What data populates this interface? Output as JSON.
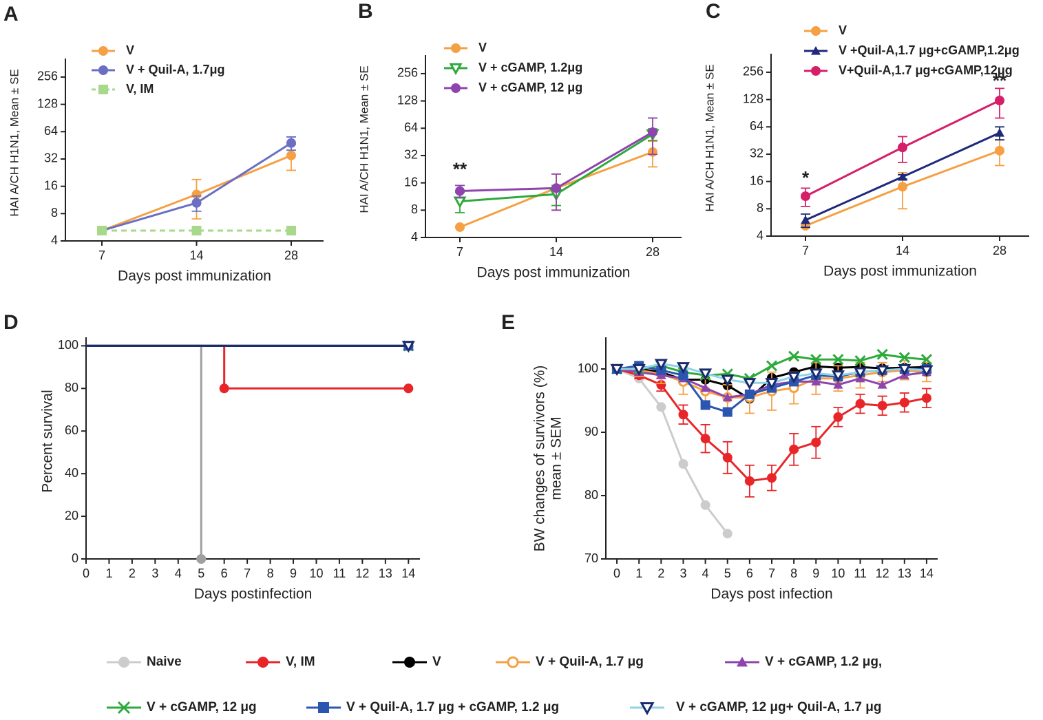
{
  "chart_data": [
    {
      "type": "line",
      "label": "A",
      "ylabel": "HAI A/CH H1N1, Mean ± SE",
      "xlabel": "Days post immunization",
      "categories": [
        "7",
        "14",
        "28"
      ],
      "log_scale": true,
      "ylim": [
        4,
        410
      ],
      "yticks": [
        4,
        8,
        16,
        32,
        64,
        128,
        256
      ],
      "legend": "upper left",
      "series": [
        {
          "name": "V",
          "color": "#f5a043",
          "marker": "circle",
          "values": [
            5.2,
            13,
            35
          ],
          "errors": [
            0,
            6,
            11
          ]
        },
        {
          "name": "V + Quil-A, 1.7μg",
          "color": "#6a6fc4",
          "marker": "circle",
          "values": [
            5.2,
            10.5,
            48
          ],
          "errors": [
            0,
            2,
            8
          ]
        },
        {
          "name": "V, IM",
          "color": "#a8d88a",
          "marker": "square",
          "dashed": true,
          "values": [
            5.2,
            5.2,
            5.2
          ]
        }
      ]
    },
    {
      "type": "line",
      "label": "B",
      "ylabel": "HAI A/CH H1N1, Mean ± SE",
      "xlabel": "Days post immunization",
      "categories": [
        "7",
        "14",
        "28"
      ],
      "log_scale": true,
      "ylim": [
        4,
        410
      ],
      "yticks": [
        4,
        8,
        16,
        32,
        64,
        128,
        256
      ],
      "legend": "upper left",
      "series": [
        {
          "name": "V",
          "color": "#f5a043",
          "marker": "circle",
          "values": [
            5.2,
            14,
            35
          ],
          "errors": [
            0,
            6,
            11
          ]
        },
        {
          "name": "V + cGAMP, 1.2μg",
          "color": "#2eaa3c",
          "marker": "open-triangle-down",
          "values": [
            10,
            12,
            55
          ],
          "errors": [
            2.5,
            3,
            8
          ]
        },
        {
          "name": "V + cGAMP, 12 μg",
          "color": "#8e44ad",
          "marker": "circle",
          "values": [
            13,
            14,
            58
          ],
          "errors": [
            2,
            6,
            25
          ]
        }
      ],
      "annotations": [
        {
          "text": "**",
          "x": "7",
          "y": 22,
          "color": "#8e44ad"
        }
      ]
    },
    {
      "type": "line",
      "label": "C",
      "ylabel": "HAI A/CH H1N1, Mean ± SE",
      "xlabel": "Days post immunization",
      "categories": [
        "7",
        "14",
        "28"
      ],
      "log_scale": true,
      "ylim": [
        4,
        410
      ],
      "yticks": [
        4,
        8,
        16,
        32,
        64,
        128,
        256
      ],
      "legend": "upper left",
      "series": [
        {
          "name": "V",
          "color": "#f5a043",
          "marker": "circle",
          "values": [
            5.2,
            14,
            35
          ],
          "errors": [
            0,
            6,
            11
          ]
        },
        {
          "name": "V +Quil-A,1.7 μg+cGAMP,1.2μg",
          "color": "#1f2a7a",
          "marker": "triangle",
          "values": [
            6,
            18,
            55
          ],
          "errors": [
            1,
            1,
            9
          ]
        },
        {
          "name": "V+Quil-A,1.7 μg+cGAMP,12μg",
          "color": "#d61f69",
          "marker": "circle",
          "values": [
            11,
            38,
            125
          ],
          "errors": [
            2.5,
            12,
            45
          ]
        }
      ],
      "annotations": [
        {
          "text": "*",
          "x": "7",
          "y": 17,
          "color": "#d61f69"
        },
        {
          "text": "**",
          "x": "28",
          "y": 200,
          "color": "#d61f69"
        }
      ]
    },
    {
      "type": "survival",
      "label": "D",
      "ylabel": "Percent survival",
      "xlabel": "Days postinfection",
      "xlim": [
        0,
        14.5
      ],
      "xticks": [
        0,
        1,
        2,
        3,
        4,
        5,
        6,
        7,
        8,
        9,
        10,
        11,
        12,
        13,
        14
      ],
      "ylim": [
        0,
        104
      ],
      "yticks": [
        0,
        20,
        40,
        60,
        80,
        100
      ],
      "series": [
        {
          "color": "#a0a0a0",
          "marker": "circle",
          "x": [
            0,
            5
          ],
          "values": [
            100,
            0
          ]
        },
        {
          "color": "#e8262a",
          "marker": "circle",
          "x": [
            0,
            6,
            14
          ],
          "values": [
            100,
            80,
            80
          ]
        },
        {
          "color": "#000000",
          "marker": "circle",
          "x": [
            0,
            14
          ],
          "values": [
            100,
            100
          ]
        },
        {
          "color": "#2eaa3c",
          "marker": "x",
          "x": [
            0,
            14
          ],
          "values": [
            100,
            100
          ]
        },
        {
          "color": "#2a55b0",
          "marker": "square",
          "x": [
            0,
            14
          ],
          "values": [
            100,
            100
          ]
        },
        {
          "color": "#1a2a6c",
          "marker": "open-triangle-down",
          "x": [
            0,
            14
          ],
          "values": [
            100,
            100
          ]
        }
      ]
    },
    {
      "type": "line",
      "label": "E",
      "ylabel": [
        "BW changes of survivors (%)",
        "mean ± SEM"
      ],
      "xlabel": "Days post infection",
      "x": [
        0,
        1,
        2,
        3,
        4,
        5,
        6,
        7,
        8,
        9,
        10,
        11,
        12,
        13,
        14
      ],
      "xlim": [
        -0.5,
        14.5
      ],
      "xticks": [
        0,
        1,
        2,
        3,
        4,
        5,
        6,
        7,
        8,
        9,
        10,
        11,
        12,
        13,
        14
      ],
      "ylim": [
        70,
        105
      ],
      "yticks": [
        70,
        80,
        90,
        100
      ],
      "legend": "bottom",
      "series": [
        {
          "name": "Naive",
          "color": "#cccccc",
          "marker": "circle",
          "values": [
            100,
            98.5,
            94,
            85,
            78.5,
            74,
            null,
            null,
            null,
            null,
            null,
            null,
            null,
            null,
            null
          ]
        },
        {
          "name": "V, IM",
          "color": "#e8262a",
          "marker": "circle",
          "values": [
            100,
            99,
            97.5,
            92.8,
            89,
            86,
            82.3,
            82.8,
            87.3,
            88.4,
            92.4,
            94.5,
            94.2,
            94.7,
            95.4
          ],
          "errors": [
            0,
            0.5,
            1,
            1.5,
            2.2,
            2.5,
            2.5,
            2,
            2.5,
            2.5,
            1.5,
            1.5,
            1.5,
            1.5,
            1.5
          ]
        },
        {
          "name": "V",
          "color": "#000000",
          "marker": "circle",
          "values": [
            100,
            100,
            99.5,
            98.3,
            98.3,
            97.4,
            95.3,
            98.6,
            99.5,
            100.4,
            100.2,
            100.3,
            100.1,
            100.2,
            100.3
          ]
        },
        {
          "name": "V + Quil-A, 1.7 μg",
          "color": "#f5a043",
          "marker": "open-circle",
          "values": [
            100,
            99.8,
            99.2,
            98,
            96.5,
            95.5,
            95.5,
            96.5,
            97,
            98.5,
            98.5,
            99,
            99.5,
            99.8,
            99.5
          ],
          "errors": [
            0,
            1,
            1.5,
            2,
            2,
            2,
            2.5,
            3,
            2.5,
            2.5,
            2,
            2,
            1.5,
            1.5,
            1.5
          ]
        },
        {
          "name": "V + cGAMP, 1.2 μg,",
          "color": "#8e44ad",
          "marker": "triangle",
          "values": [
            100,
            99.5,
            99,
            98.5,
            97,
            95.5,
            96,
            97.5,
            98,
            98,
            97.5,
            98.5,
            97.5,
            99,
            99.5
          ]
        },
        {
          "name": "V + cGAMP, 12 μg",
          "color": "#2eaa3c",
          "marker": "x",
          "values": [
            100,
            100,
            100.5,
            99.5,
            99,
            99.2,
            98.5,
            100.5,
            102,
            101.5,
            101.5,
            101.3,
            102.3,
            101.8,
            101.5
          ]
        },
        {
          "name": "V + Quil-A, 1.7 μg + cGAMP, 1.2 μg",
          "color": "#2a55b0",
          "marker": "square",
          "values": [
            100,
            100.5,
            99.8,
            99,
            94.3,
            93.2,
            96,
            97,
            98,
            99,
            98.8,
            99.5,
            99.8,
            100,
            100
          ]
        },
        {
          "name": "V + cGAMP, 12 μg+ Quil-A, 1.7 μg",
          "color": "#1a2a6c",
          "line_color": "#8fd3e8",
          "marker": "open-triangle-down",
          "values": [
            100,
            100,
            100.8,
            100.3,
            99.3,
            98.3,
            97.8,
            97.8,
            98.8,
            99.3,
            99,
            99.5,
            99.8,
            100,
            99.8
          ]
        }
      ]
    }
  ]
}
